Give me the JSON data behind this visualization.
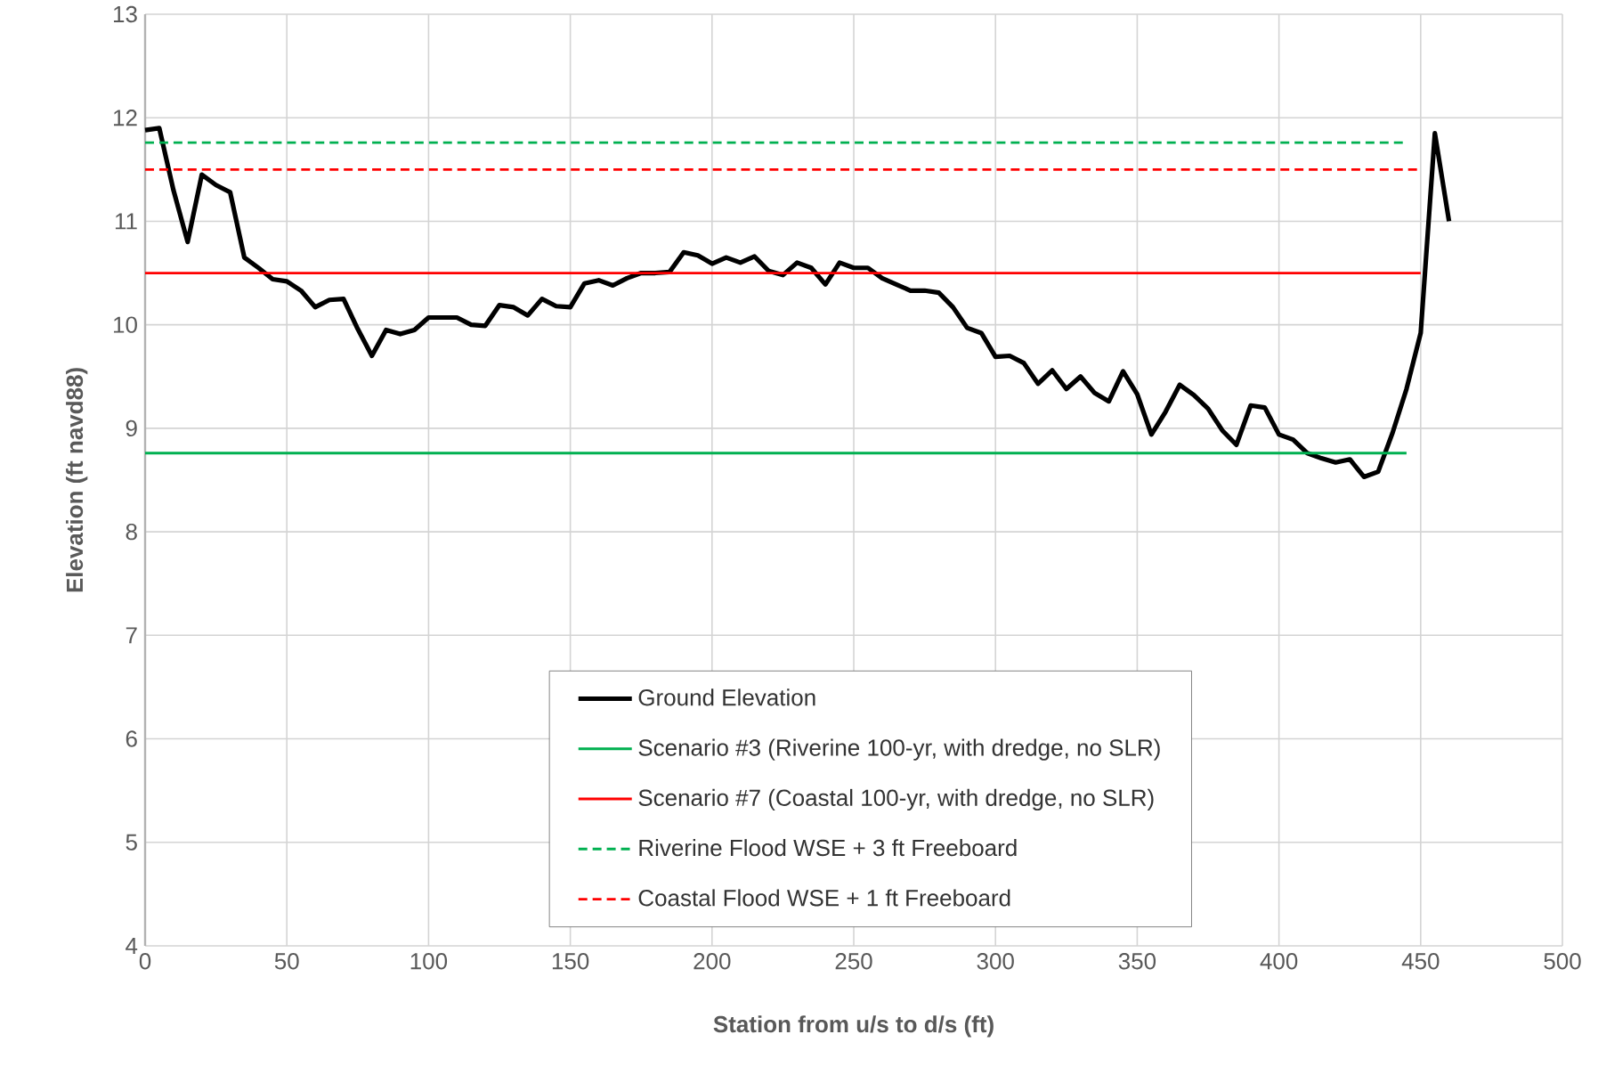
{
  "chart_data": {
    "type": "line",
    "xlabel": "Station from u/s to d/s (ft)",
    "ylabel": "Elevation (ft navd88)",
    "xlim": [
      0,
      500
    ],
    "xticks": [
      0,
      50,
      100,
      150,
      200,
      250,
      300,
      350,
      400,
      450,
      500
    ],
    "ylim": [
      4,
      13
    ],
    "yticks": [
      4,
      5,
      6,
      7,
      8,
      9,
      10,
      11,
      12,
      13
    ],
    "grid": true,
    "legend": "bottom",
    "series": [
      {
        "name": "Ground Elevation",
        "color": "#000000",
        "line_style": "solid",
        "x": [
          0,
          5,
          10,
          15,
          20,
          25,
          30,
          35,
          40,
          45,
          50,
          55,
          60,
          65,
          70,
          75,
          80,
          85,
          90,
          95,
          100,
          105,
          110,
          115,
          120,
          125,
          130,
          135,
          140,
          145,
          150,
          155,
          160,
          165,
          170,
          175,
          180,
          185,
          190,
          195,
          200,
          205,
          210,
          215,
          220,
          225,
          230,
          235,
          240,
          245,
          250,
          255,
          260,
          265,
          270,
          275,
          280,
          285,
          290,
          295,
          300,
          305,
          310,
          315,
          320,
          325,
          330,
          335,
          340,
          345,
          350,
          355,
          360,
          365,
          370,
          375,
          380,
          385,
          390,
          395,
          400,
          405,
          410,
          415,
          420,
          425,
          430,
          435,
          440,
          445,
          450,
          455,
          460
        ],
        "values": [
          11.88,
          11.9,
          11.3,
          10.8,
          11.45,
          11.35,
          11.28,
          10.65,
          10.55,
          10.44,
          10.42,
          10.33,
          10.17,
          10.24,
          10.25,
          9.96,
          9.7,
          9.95,
          9.91,
          9.95,
          10.07,
          10.07,
          10.07,
          10.0,
          9.99,
          10.19,
          10.17,
          10.09,
          10.25,
          10.18,
          10.17,
          10.4,
          10.43,
          10.38,
          10.45,
          10.5,
          10.5,
          10.51,
          10.7,
          10.67,
          10.59,
          10.65,
          10.6,
          10.66,
          10.52,
          10.48,
          10.6,
          10.55,
          10.39,
          10.6,
          10.55,
          10.55,
          10.45,
          10.39,
          10.33,
          10.33,
          10.31,
          10.17,
          9.97,
          9.92,
          9.69,
          9.7,
          9.63,
          9.43,
          9.56,
          9.38,
          9.5,
          9.34,
          9.26,
          9.55,
          9.33,
          8.94,
          9.16,
          9.42,
          9.32,
          9.19,
          8.98,
          8.84,
          9.22,
          9.2,
          8.94,
          8.89,
          8.76,
          8.71,
          8.67,
          8.7,
          8.53,
          8.58,
          8.95,
          9.38,
          9.92,
          11.85,
          11.0
        ]
      },
      {
        "name": "Scenario #3 (Riverine 100-yr, with dredge, no SLR)",
        "color": "#00b050",
        "line_style": "solid",
        "x": [
          0,
          445
        ],
        "values": [
          8.76,
          8.76
        ]
      },
      {
        "name": "Scenario #7 (Coastal 100-yr, with dredge, no SLR)",
        "color": "#ff0000",
        "line_style": "solid",
        "x": [
          0,
          450
        ],
        "values": [
          10.5,
          10.5
        ]
      },
      {
        "name": "Riverine Flood WSE + 3 ft Freeboard",
        "color": "#00b050",
        "line_style": "dashed",
        "x": [
          0,
          445
        ],
        "values": [
          11.76,
          11.76
        ]
      },
      {
        "name": "Coastal Flood WSE + 1 ft Freeboard",
        "color": "#ff0000",
        "line_style": "dashed",
        "x": [
          0,
          450
        ],
        "values": [
          11.5,
          11.5
        ]
      }
    ]
  }
}
